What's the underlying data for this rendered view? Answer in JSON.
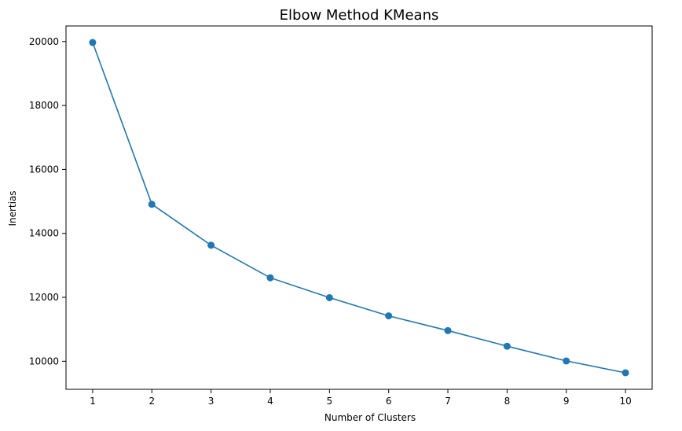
{
  "chart_data": {
    "type": "line",
    "title": "Elbow Method KMeans",
    "xlabel": "Number of Clusters",
    "ylabel": "Inertias",
    "x": [
      1,
      2,
      3,
      4,
      5,
      6,
      7,
      8,
      9,
      10
    ],
    "series": [
      {
        "values": [
          19970,
          14910,
          13630,
          12610,
          11990,
          11420,
          10960,
          10470,
          10010,
          9640
        ],
        "color": "#1f77b4",
        "marker": "circle"
      }
    ],
    "xticks": [
      "1",
      "2",
      "3",
      "4",
      "5",
      "6",
      "7",
      "8",
      "9",
      "10"
    ],
    "yticks": [
      "10000",
      "12000",
      "14000",
      "16000",
      "18000",
      "20000"
    ],
    "xlim": [
      0.55,
      10.45
    ],
    "ylim": [
      9123,
      20487
    ],
    "grid": false,
    "legend": "none"
  }
}
